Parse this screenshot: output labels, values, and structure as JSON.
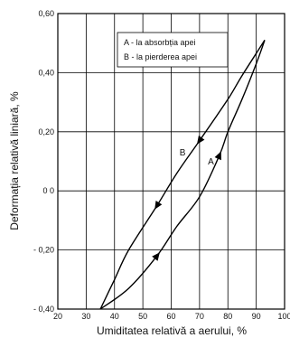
{
  "chart_data": {
    "type": "line",
    "title": "",
    "xlabel": "Umiditatea relativă a aerului, %",
    "ylabel": "Deformația relativă liniară, %",
    "xlim": [
      20,
      100
    ],
    "ylim": [
      -0.4,
      0.6
    ],
    "x_ticks": [
      20,
      30,
      40,
      50,
      60,
      70,
      80,
      90,
      100
    ],
    "y_ticks": [
      -0.4,
      -0.2,
      0,
      0.2,
      0.4,
      0.6
    ],
    "x_tick_labels": [
      "20",
      "30",
      "40",
      "50",
      "60",
      "70",
      "80",
      "90",
      "100"
    ],
    "y_tick_labels": [
      "- 0,40",
      "- 0,20",
      "0 0",
      "0,20",
      "0,40",
      "0,60"
    ],
    "grid": true,
    "legend_position": "top-right",
    "legend": [
      "A - la absorbția apei",
      "B - la pierderea apei"
    ],
    "series": [
      {
        "name": "A",
        "label": "A",
        "x": [
          35,
          45,
          55,
          62,
          70,
          77,
          80,
          85,
          90,
          93
        ],
        "y": [
          -0.4,
          -0.33,
          -0.22,
          -0.12,
          -0.02,
          0.12,
          0.2,
          0.31,
          0.43,
          0.51
        ],
        "arrows_at": [
          2,
          5
        ]
      },
      {
        "name": "B",
        "label": "B",
        "x": [
          93,
          85,
          80,
          70,
          62,
          55,
          45,
          40,
          35
        ],
        "y": [
          0.51,
          0.39,
          0.31,
          0.17,
          0.06,
          -0.05,
          -0.2,
          -0.3,
          -0.4
        ],
        "arrows_at": [
          3,
          5
        ]
      }
    ],
    "annotations": [
      {
        "text": "A",
        "x": 74,
        "y": 0.09
      },
      {
        "text": "B",
        "x": 64,
        "y": 0.12
      }
    ]
  }
}
